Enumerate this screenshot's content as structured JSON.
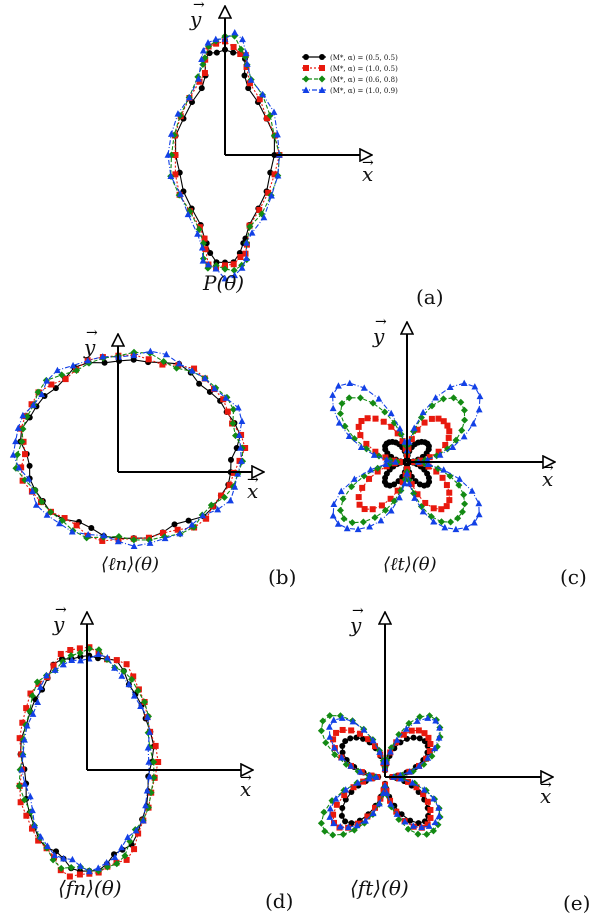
{
  "legend": [
    {
      "label": "(M*, α) = (0.5, 0.5)",
      "color": "#000000",
      "marker": "circle",
      "dash": "solid"
    },
    {
      "label": "(M*, α) = (1.0, 0.5)",
      "color": "#e8190e",
      "marker": "square",
      "dash": "dotted"
    },
    {
      "label": "(M*, α) = (0.6, 0.8)",
      "color": "#138a13",
      "marker": "diamond",
      "dash": "dashed"
    },
    {
      "label": "(M*, α) = (1.0, 0.9)",
      "color": "#1240e6",
      "marker": "triangle",
      "dash": "dashdot"
    }
  ],
  "axes": {
    "x_label": "x",
    "y_label": "y"
  },
  "chart_data": [
    {
      "type": "polar-distribution",
      "panel": "(a)",
      "caption": "P(θ)",
      "shape": "peanut",
      "series": [
        {
          "name": "(M*, α) = (0.5, 0.5)",
          "scale": 0.95
        },
        {
          "name": "(M*, α) = (1.0, 0.5)",
          "scale": 1.0
        },
        {
          "name": "(M*, α) = (0.6, 0.8)",
          "scale": 1.04
        },
        {
          "name": "(M*, α) = (1.0, 0.9)",
          "scale": 1.07
        }
      ]
    },
    {
      "type": "polar-distribution",
      "panel": "(b)",
      "caption": "⟨ℓn⟩(θ)",
      "shape": "ellipse-wide",
      "series": [
        {
          "name": "(M*, α) = (0.5, 0.5)",
          "scale": 0.97
        },
        {
          "name": "(M*, α) = (1.0, 0.5)",
          "scale": 1.0
        },
        {
          "name": "(M*, α) = (0.6, 0.8)",
          "scale": 1.01
        },
        {
          "name": "(M*, α) = (1.0, 0.9)",
          "scale": 1.03
        }
      ]
    },
    {
      "type": "polar-distribution",
      "panel": "(c)",
      "caption": "⟨ℓt⟩(θ)",
      "shape": "four-lobe",
      "series": [
        {
          "name": "(M*, α) = (0.5, 0.5)",
          "scale": 0.3
        },
        {
          "name": "(M*, α) = (1.0, 0.5)",
          "scale": 0.62
        },
        {
          "name": "(M*, α) = (0.6, 0.8)",
          "scale": 0.85
        },
        {
          "name": "(M*, α) = (1.0, 0.9)",
          "scale": 1.0
        }
      ]
    },
    {
      "type": "polar-distribution",
      "panel": "(d)",
      "caption": "⟨fn⟩(θ)",
      "shape": "ellipse-tall",
      "series": [
        {
          "name": "(M*, α) = (0.5, 0.5)",
          "scale": 0.98
        },
        {
          "name": "(M*, α) = (1.0, 0.5)",
          "scale": 1.03
        },
        {
          "name": "(M*, α) = (0.6, 0.8)",
          "scale": 1.0
        },
        {
          "name": "(M*, α) = (1.0, 0.9)",
          "scale": 0.96
        }
      ]
    },
    {
      "type": "polar-distribution",
      "panel": "(e)",
      "caption": "⟨ft⟩(θ)",
      "shape": "four-lobe",
      "series": [
        {
          "name": "(M*, α) = (0.5, 0.5)",
          "scale": 0.72
        },
        {
          "name": "(M*, α) = (1.0, 0.5)",
          "scale": 0.82
        },
        {
          "name": "(M*, α) = (0.6, 0.8)",
          "scale": 1.0
        },
        {
          "name": "(M*, α) = (1.0, 0.9)",
          "scale": 0.92
        }
      ]
    }
  ]
}
